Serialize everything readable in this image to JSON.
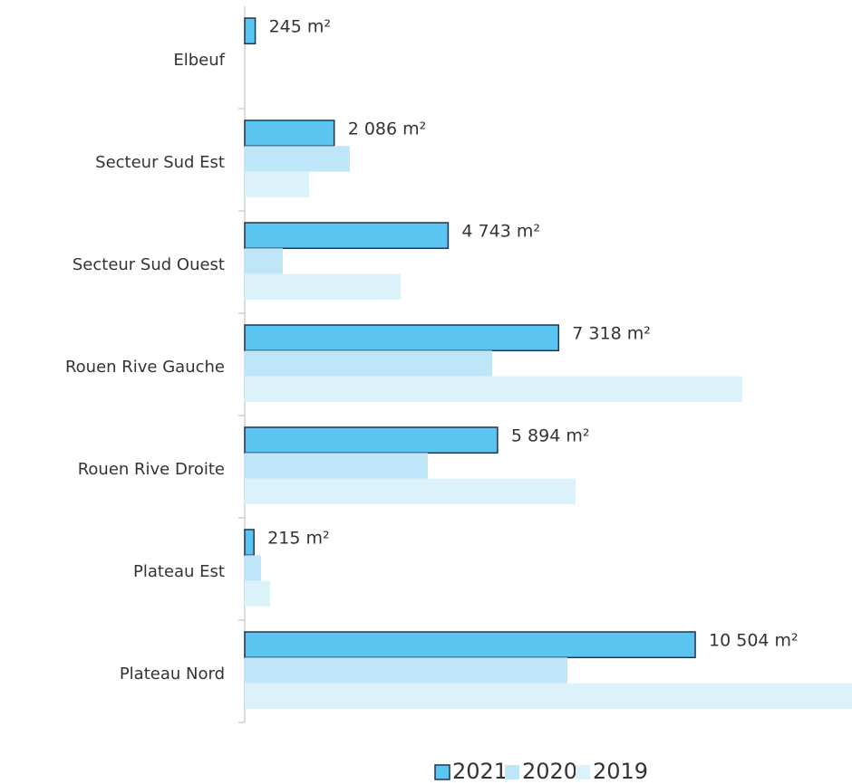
{
  "chart_data": {
    "type": "bar",
    "orientation": "horizontal",
    "categories": [
      "Elbeuf",
      "Secteur Sud Est",
      "Secteur Sud Ouest",
      "Rouen Rive Gauche",
      "Rouen Rive Droite",
      "Plateau Est",
      "Plateau Nord"
    ],
    "series": [
      {
        "name": "2021",
        "color": "#5bc5f2",
        "values": [
          245,
          2086,
          4743,
          7318,
          5894,
          215,
          10504
        ],
        "value_labels": [
          "245 m²",
          "2 086 m²",
          "4 743 m²",
          "7 318 m²",
          "5 894 m²",
          "215 m²",
          "10 504 m²"
        ]
      },
      {
        "name": "2020",
        "color": "#bfe6f8",
        "values": [
          null,
          2451,
          888,
          5769,
          4269,
          380,
          7523
        ]
      },
      {
        "name": "2019",
        "color": "#dcf2fb",
        "values": [
          null,
          1500,
          3635,
          11602,
          7713,
          592,
          14159
        ]
      }
    ],
    "legend": "bottom"
  }
}
